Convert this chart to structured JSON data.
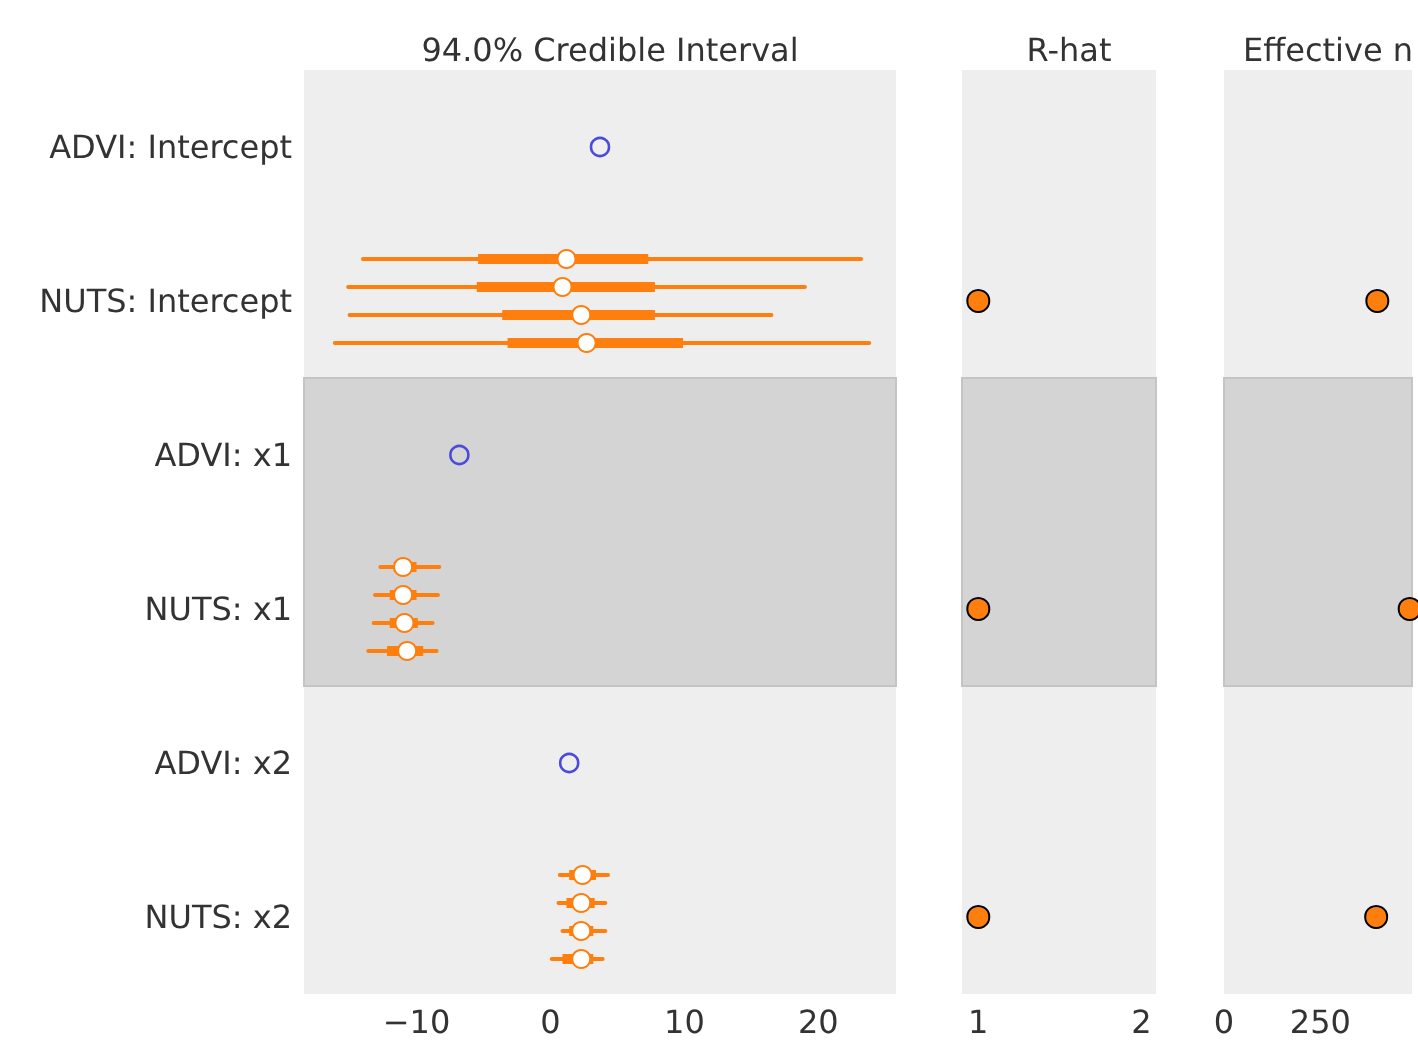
{
  "chart_data": [
    {
      "type": "box",
      "title": "94.0% Credible Interval",
      "orientation": "horizontal",
      "marker": "circle",
      "categories": [
        "ADVI: Intercept",
        "NUTS: Intercept",
        "ADVI: x1",
        "NUTS: x1",
        "ADVI: x2",
        "NUTS: x2"
      ],
      "xlim": [
        -18.4,
        25.8
      ],
      "xticks": [
        {
          "value": -10,
          "label": "−10"
        },
        0,
        10,
        20
      ],
      "bands": [
        {
          "axis": "y",
          "from": "ADVI: x1",
          "to": "NUTS: x1",
          "color": "#d4d4d4"
        }
      ],
      "series": [
        {
          "type": "scatter",
          "color": "#4b4bdb",
          "values": [
            3.7,
            null,
            -6.8,
            null,
            1.4,
            null
          ]
        },
        {
          "color": "#ff7f0e",
          "boxes": [
            null,
            {
              "low": -14.0,
              "q1": -5.4,
              "median": 1.2,
              "q3": 7.3,
              "high": 23.2
            },
            null,
            {
              "low": -12.7,
              "q1": -11.7,
              "median": -11.0,
              "q3": -10.0,
              "high": -8.3
            },
            null,
            {
              "low": 0.7,
              "q1": 1.4,
              "median": 2.4,
              "q3": 3.4,
              "high": 4.3
            }
          ]
        },
        {
          "color": "#ff7f0e",
          "boxes": [
            null,
            {
              "low": -15.1,
              "q1": -5.5,
              "median": 0.9,
              "q3": 7.8,
              "high": 19.0
            },
            null,
            {
              "low": -13.1,
              "q1": -12.0,
              "median": -11.0,
              "q3": -10.0,
              "high": -8.4
            },
            null,
            {
              "low": 0.6,
              "q1": 1.2,
              "median": 2.3,
              "q3": 3.3,
              "high": 4.1
            }
          ]
        },
        {
          "color": "#ff7f0e",
          "boxes": [
            null,
            {
              "low": -15.0,
              "q1": -3.6,
              "median": 2.3,
              "q3": 7.8,
              "high": 16.5
            },
            null,
            {
              "low": -13.2,
              "q1": -12.0,
              "median": -10.9,
              "q3": -9.9,
              "high": -8.8
            },
            null,
            {
              "low": 0.9,
              "q1": 1.4,
              "median": 2.3,
              "q3": 3.2,
              "high": 4.1
            }
          ]
        },
        {
          "color": "#ff7f0e",
          "boxes": [
            null,
            {
              "low": -16.1,
              "q1": -3.2,
              "median": 2.7,
              "q3": 9.9,
              "high": 23.8
            },
            null,
            {
              "low": -13.6,
              "q1": -12.2,
              "median": -10.7,
              "q3": -9.5,
              "high": -8.5
            },
            null,
            {
              "low": 0.1,
              "q1": 0.9,
              "median": 2.3,
              "q3": 3.2,
              "high": 3.9
            }
          ]
        }
      ]
    },
    {
      "type": "scatter",
      "title": "R-hat",
      "orientation": "horizontal",
      "marker": "circle",
      "tick_labels": "x",
      "categories": [
        "ADVI: Intercept",
        "NUTS: Intercept",
        "ADVI: x1",
        "NUTS: x1",
        "ADVI: x2",
        "NUTS: x2"
      ],
      "xlim": [
        0.9,
        2.09
      ],
      "xticks": [
        1,
        2
      ],
      "bands": [
        {
          "axis": "y",
          "from": "ADVI: x1",
          "to": "NUTS: x1",
          "color": "#d4d4d4"
        }
      ],
      "color": "#ff7f0e",
      "values": [
        null,
        1.0,
        null,
        1.0,
        null,
        1.0
      ]
    },
    {
      "type": "scatter",
      "title": "Effective n",
      "orientation": "horizontal",
      "marker": "circle",
      "tick_labels": "x",
      "categories": [
        "ADVI: Intercept",
        "NUTS: Intercept",
        "ADVI: x1",
        "NUTS: x1",
        "ADVI: x2",
        "NUTS: x2"
      ],
      "xlim": [
        0,
        488
      ],
      "xticks": [
        0,
        250
      ],
      "bands": [
        {
          "axis": "y",
          "from": "ADVI: x1",
          "to": "NUTS: x1",
          "color": "#d4d4d4"
        }
      ],
      "color": "#ff7f0e",
      "values": [
        null,
        398,
        null,
        482,
        null,
        395
      ]
    }
  ]
}
